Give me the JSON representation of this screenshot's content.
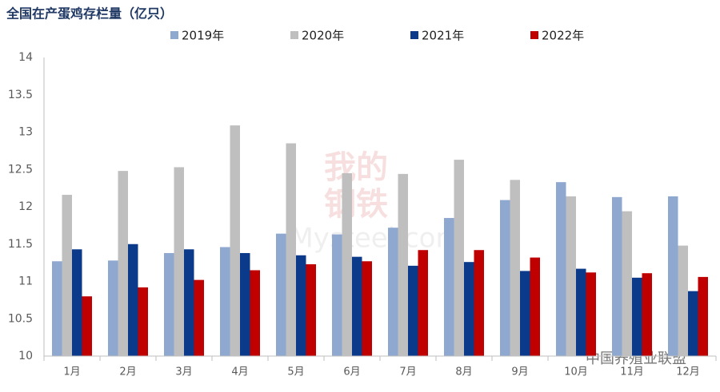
{
  "chart_data": {
    "type": "bar",
    "title": "全国在产蛋鸡存栏量（亿只）",
    "categories": [
      "1月",
      "2月",
      "3月",
      "4月",
      "5月",
      "6月",
      "7月",
      "8月",
      "9月",
      "10月",
      "11月",
      "12月"
    ],
    "series": [
      {
        "name": "2019年",
        "color": "#8fa8d0",
        "values": [
          11.27,
          11.28,
          11.38,
          11.46,
          11.64,
          11.63,
          11.72,
          11.85,
          12.09,
          12.33,
          12.13,
          12.14
        ]
      },
      {
        "name": "2020年",
        "color": "#bfbfbf",
        "values": [
          12.16,
          12.48,
          12.53,
          13.09,
          12.85,
          12.45,
          12.44,
          12.63,
          12.36,
          12.14,
          11.94,
          11.48
        ]
      },
      {
        "name": "2021年",
        "color": "#0b3a8a",
        "values": [
          11.43,
          11.5,
          11.43,
          11.38,
          11.35,
          11.33,
          11.21,
          11.26,
          11.14,
          11.17,
          11.05,
          10.87
        ]
      },
      {
        "name": "2022年",
        "color": "#c00000",
        "values": [
          10.8,
          10.92,
          11.02,
          11.15,
          11.23,
          11.27,
          11.42,
          11.42,
          11.32,
          11.12,
          11.11,
          11.06
        ]
      }
    ],
    "ylim": [
      10,
      14
    ],
    "yticks": [
      10,
      10.5,
      11,
      11.5,
      12,
      12.5,
      13,
      13.5,
      14
    ],
    "legend": "top",
    "annotations": [
      "我的",
      "钢铁",
      "Mysteel.com",
      "中国养殖业联盟"
    ]
  }
}
